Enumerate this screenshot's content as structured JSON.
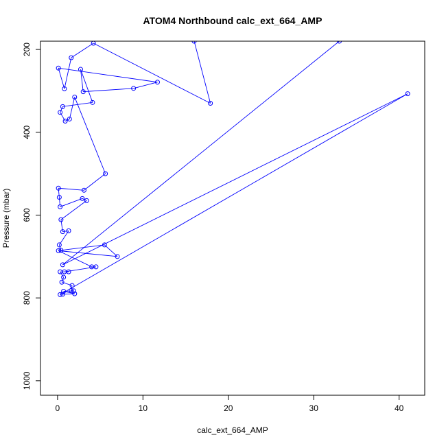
{
  "chart_data": {
    "type": "line",
    "title": "ATOM4 Northbound calc_ext_664_AMP",
    "xlabel": "calc_ext_664_AMP",
    "ylabel": "Pressure (mbar)",
    "xlim": [
      -2,
      43
    ],
    "ylim": [
      1035,
      180
    ],
    "y_reversed": true,
    "xticks": [
      0,
      10,
      20,
      30,
      40
    ],
    "yticks": [
      200,
      400,
      600,
      800,
      1000
    ],
    "grid": false,
    "legend": "none",
    "color": "#0000ff",
    "series": [
      {
        "marker": "open-circle",
        "points": [
          [
            16.0,
            180
          ],
          [
            17.9,
            330
          ],
          [
            4.2,
            185
          ],
          [
            1.6,
            220
          ],
          [
            0.8,
            295
          ],
          [
            0.1,
            245
          ],
          [
            11.7,
            279
          ],
          [
            8.9,
            294
          ],
          [
            3.0,
            302
          ],
          [
            2.7,
            248
          ],
          [
            4.1,
            328
          ],
          [
            0.6,
            338
          ],
          [
            0.3,
            352
          ],
          [
            0.9,
            373
          ],
          [
            1.4,
            368
          ],
          [
            2.0,
            315
          ],
          [
            5.6,
            500
          ],
          [
            3.1,
            540
          ],
          [
            0.1,
            535
          ],
          [
            0.2,
            557
          ],
          [
            0.3,
            580
          ],
          [
            2.9,
            560
          ],
          [
            3.4,
            565
          ],
          [
            0.4,
            611
          ],
          [
            0.6,
            640
          ],
          [
            1.3,
            638
          ],
          [
            0.2,
            672
          ],
          [
            0.4,
            685
          ],
          [
            5.5,
            672
          ],
          [
            7.0,
            700
          ],
          [
            0.1,
            686
          ],
          [
            4.0,
            725
          ],
          [
            4.5,
            725
          ],
          [
            0.8,
            737
          ],
          [
            1.3,
            737
          ],
          [
            0.3,
            737
          ],
          [
            0.7,
            750
          ],
          [
            0.5,
            762
          ],
          [
            1.7,
            770
          ],
          [
            1.6,
            782
          ],
          [
            1.9,
            783
          ],
          [
            0.7,
            784
          ],
          [
            2.0,
            790
          ],
          [
            0.6,
            791
          ],
          [
            0.3,
            792
          ],
          [
            41.0,
            307
          ],
          [
            0.6,
            720
          ],
          [
            33.0,
            180
          ]
        ]
      }
    ]
  }
}
